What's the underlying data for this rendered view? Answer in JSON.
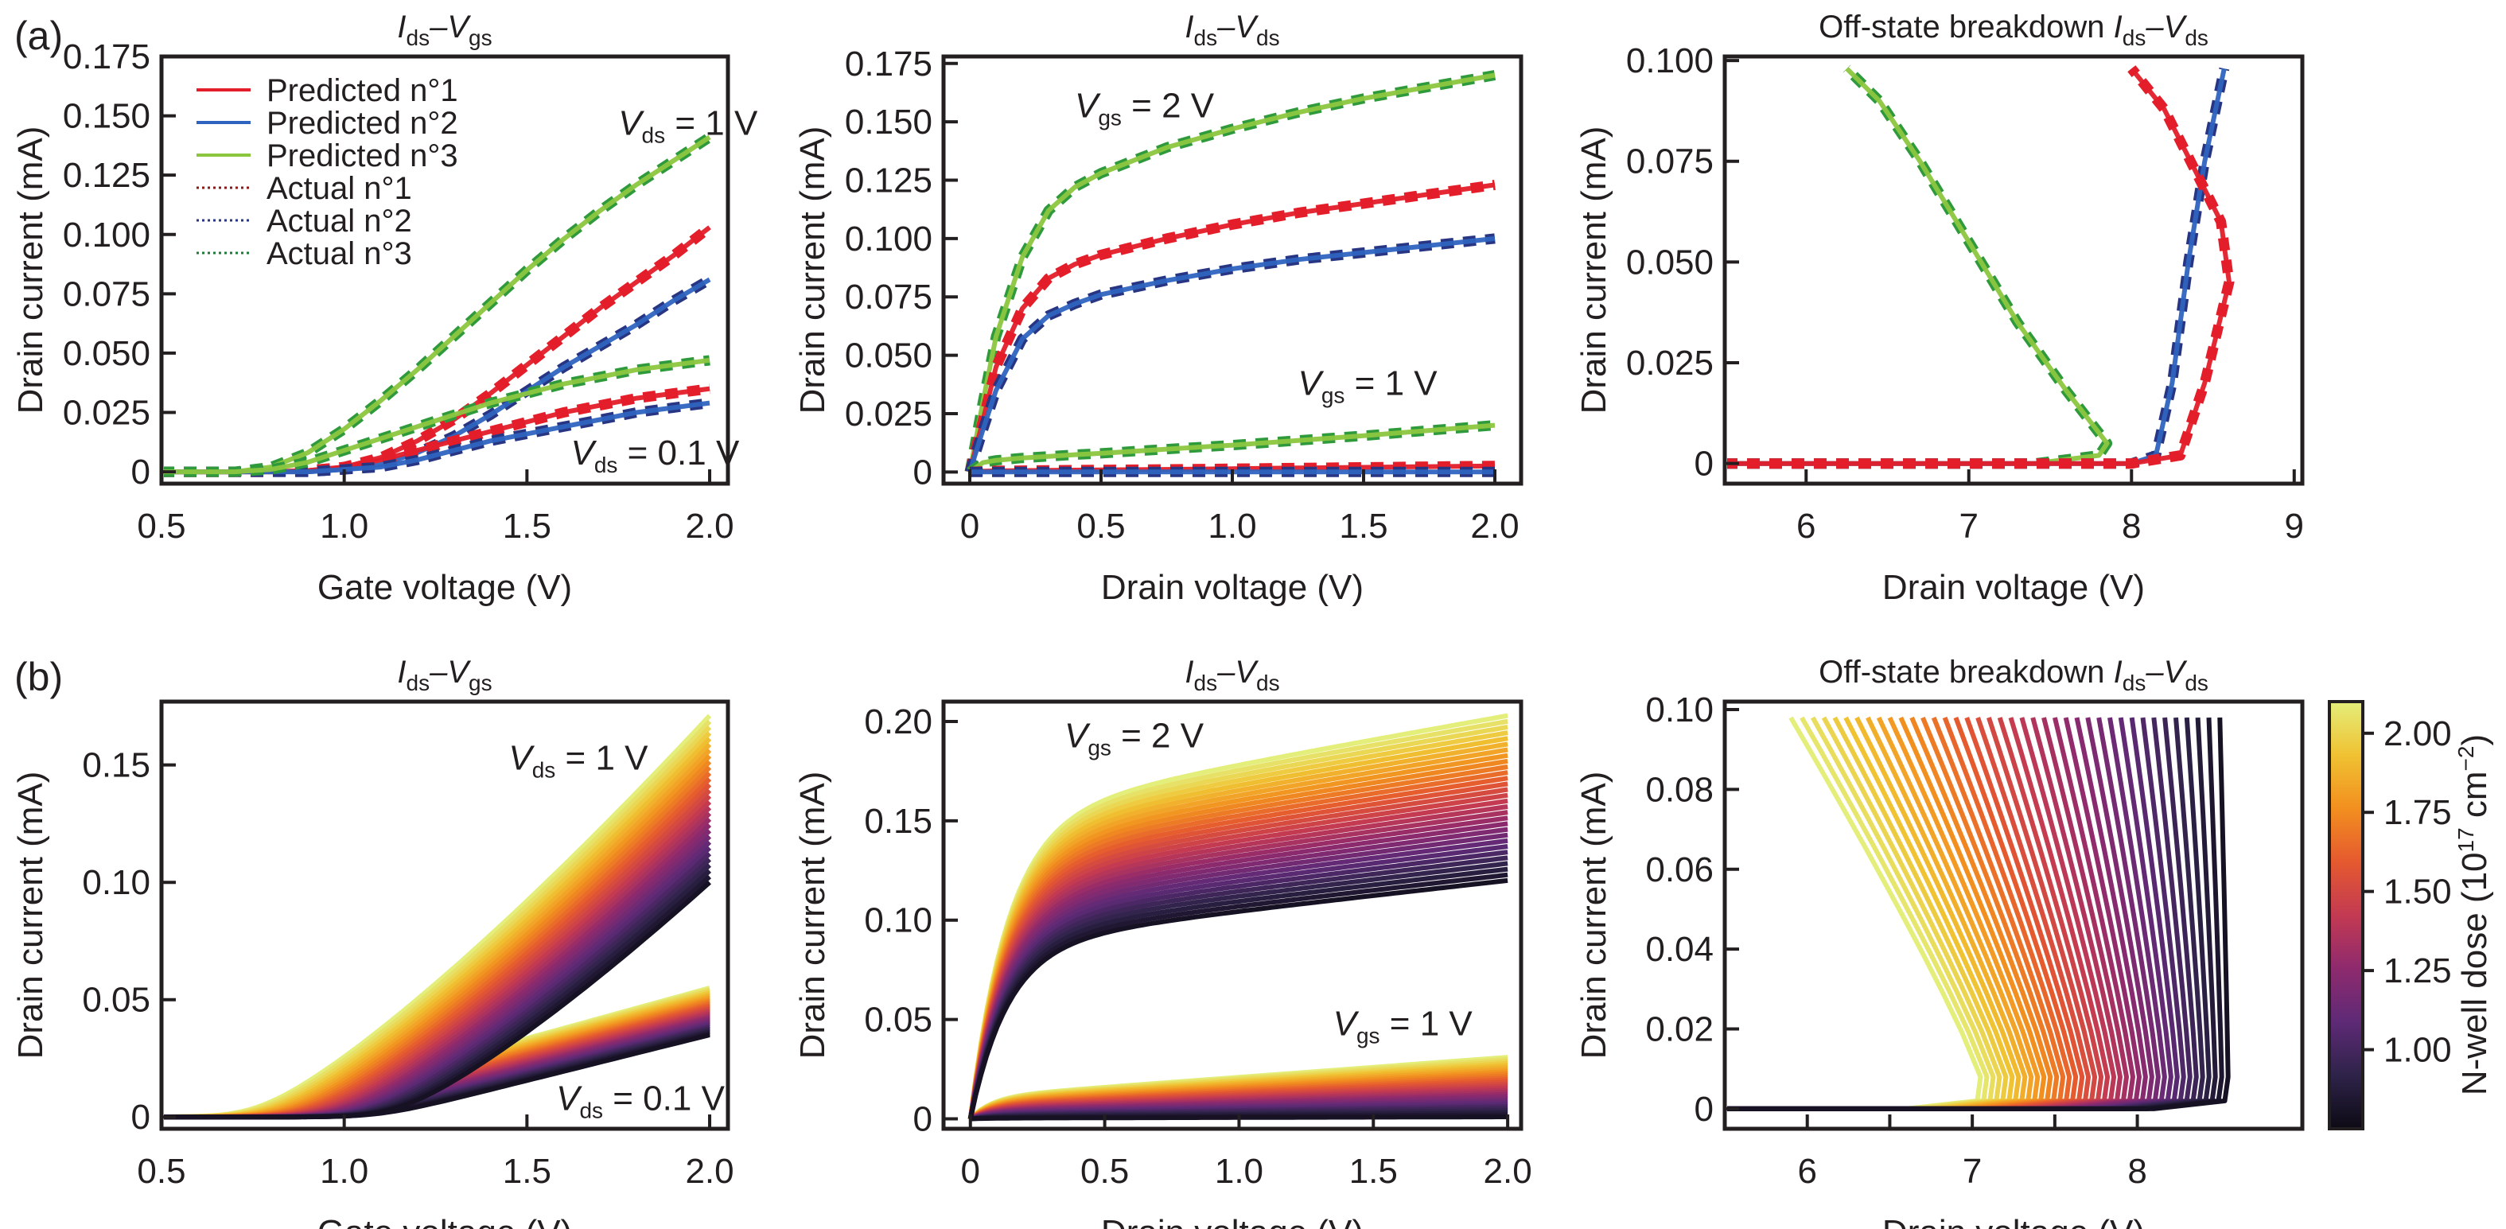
{
  "figure": {
    "panel_labels": [
      "(a)",
      "(b)"
    ],
    "legend": {
      "items": [
        {
          "label": "Predicted n°1",
          "style": "solid",
          "color": "#e31e2a"
        },
        {
          "label": "Predicted n°2",
          "style": "solid",
          "color": "#2e64bf"
        },
        {
          "label": "Predicted n°3",
          "style": "solid",
          "color": "#8cc63f"
        },
        {
          "label": "Actual n°1",
          "style": "dotted",
          "color": "#8b1a1a"
        },
        {
          "label": "Actual n°2",
          "style": "dotted",
          "color": "#283583"
        },
        {
          "label": "Actual n°3",
          "style": "dotted",
          "color": "#1f7a3a"
        }
      ]
    },
    "colorbar": {
      "label": "N-well dose (10",
      "label_exp": "17",
      "label_unit": " cm",
      "label_unit_exp": "−2",
      "label_close": ")",
      "ticks": [
        "1.00",
        "1.25",
        "1.50",
        "1.75",
        "2.00"
      ],
      "tick_values": [
        1.0,
        1.25,
        1.5,
        1.75,
        2.0
      ],
      "range": [
        0.75,
        2.1
      ],
      "colormap": "plasma-like (black–purple–magenta–orange–yellow)",
      "stops": [
        "#0d0a14",
        "#2e2349",
        "#5e2a76",
        "#8e2a6e",
        "#c33a52",
        "#e5592f",
        "#f28f1f",
        "#f0c232",
        "#e4ee7a"
      ]
    }
  },
  "chart_data": [
    {
      "id": "a1",
      "type": "line",
      "row": "(a)",
      "title": {
        "main": "I",
        "sub1": "ds",
        "mid": "–V",
        "sub2": "gs"
      },
      "xlabel": "Gate voltage (V)",
      "ylabel": "Drain current (mA)",
      "xlim": [
        0.5,
        2.05
      ],
      "ylim": [
        -0.005,
        0.175
      ],
      "xticks": [
        0.5,
        1.0,
        1.5,
        2.0
      ],
      "xtick_labels": [
        "0.5",
        "1.0",
        "1.5",
        "2.0"
      ],
      "yticks": [
        0,
        0.025,
        0.05,
        0.075,
        0.1,
        0.125,
        0.15,
        0.175
      ],
      "ytick_labels": [
        "0",
        "0.025",
        "0.050",
        "0.075",
        "0.100",
        "0.125",
        "0.150",
        "0.175"
      ],
      "annotations": [
        {
          "text_main": "V",
          "text_sub": "ds",
          "text_rest": " = 1 V",
          "at": [
            1.75,
            0.142
          ]
        },
        {
          "text_main": "V",
          "text_sub": "ds",
          "text_rest": " = 0.1 V",
          "at": [
            1.62,
            0.003
          ]
        }
      ],
      "x": [
        0.5,
        0.6,
        0.7,
        0.8,
        0.9,
        1.0,
        1.1,
        1.2,
        1.3,
        1.4,
        1.5,
        1.6,
        1.7,
        1.8,
        1.9,
        2.0
      ],
      "series": [
        {
          "name": "n°1 Vds=1V",
          "device": 1,
          "values": [
            0,
            0,
            0,
            0,
            0.0005,
            0.002,
            0.006,
            0.013,
            0.022,
            0.033,
            0.045,
            0.057,
            0.069,
            0.08,
            0.091,
            0.103
          ]
        },
        {
          "name": "n°2 Vds=1V",
          "device": 2,
          "values": [
            0,
            0,
            0,
            0,
            0,
            0.001,
            0.003,
            0.008,
            0.015,
            0.024,
            0.034,
            0.044,
            0.053,
            0.062,
            0.072,
            0.081
          ]
        },
        {
          "name": "n°3 Vds=1V",
          "device": 3,
          "values": [
            0,
            0,
            0,
            0.002,
            0.008,
            0.018,
            0.03,
            0.043,
            0.057,
            0.071,
            0.085,
            0.098,
            0.11,
            0.121,
            0.131,
            0.141
          ]
        },
        {
          "name": "n°1 Vds=0.1V",
          "device": 1,
          "values": [
            0,
            0,
            0,
            0,
            0.0005,
            0.002,
            0.005,
            0.009,
            0.013,
            0.017,
            0.021,
            0.025,
            0.028,
            0.031,
            0.033,
            0.035
          ]
        },
        {
          "name": "n°2 Vds=0.1V",
          "device": 2,
          "values": [
            0,
            0,
            0,
            0,
            0,
            0.001,
            0.002,
            0.005,
            0.009,
            0.013,
            0.016,
            0.019,
            0.022,
            0.025,
            0.027,
            0.029
          ]
        },
        {
          "name": "n°3 Vds=0.1V",
          "device": 3,
          "values": [
            0,
            0,
            0,
            0.001,
            0.004,
            0.009,
            0.014,
            0.019,
            0.024,
            0.029,
            0.033,
            0.037,
            0.04,
            0.043,
            0.045,
            0.047
          ]
        }
      ]
    },
    {
      "id": "a2",
      "type": "line",
      "row": "(a)",
      "title": {
        "main": "I",
        "sub1": "ds",
        "mid": "–V",
        "sub2": "ds"
      },
      "xlabel": "Drain voltage (V)",
      "ylabel": "Drain current (mA)",
      "xlim": [
        -0.1,
        2.1
      ],
      "ylim": [
        -0.005,
        0.178
      ],
      "xticks": [
        0,
        0.5,
        1.0,
        1.5,
        2.0
      ],
      "xtick_labels": [
        "0",
        "0.5",
        "1.0",
        "1.5",
        "2.0"
      ],
      "yticks": [
        0,
        0.025,
        0.05,
        0.075,
        0.1,
        0.125,
        0.15,
        0.175
      ],
      "ytick_labels": [
        "0",
        "0.025",
        "0.050",
        "0.075",
        "0.100",
        "0.125",
        "0.150",
        "0.175"
      ],
      "annotations": [
        {
          "text_main": "V",
          "text_sub": "gs",
          "text_rest": " = 2 V",
          "at": [
            0.4,
            0.152
          ]
        },
        {
          "text_main": "V",
          "text_sub": "gs",
          "text_rest": " = 1 V",
          "at": [
            1.25,
            0.033
          ]
        }
      ],
      "x": [
        0,
        0.05,
        0.1,
        0.2,
        0.3,
        0.4,
        0.5,
        0.75,
        1.0,
        1.25,
        1.5,
        1.75,
        2.0
      ],
      "series": [
        {
          "name": "n°3 Vgs=2V",
          "device": 3,
          "values": [
            0,
            0.03,
            0.058,
            0.092,
            0.112,
            0.122,
            0.128,
            0.139,
            0.147,
            0.154,
            0.16,
            0.165,
            0.17
          ]
        },
        {
          "name": "n°1 Vgs=2V",
          "device": 1,
          "values": [
            0,
            0.022,
            0.045,
            0.07,
            0.083,
            0.089,
            0.093,
            0.1,
            0.106,
            0.111,
            0.115,
            0.119,
            0.123
          ]
        },
        {
          "name": "n°2 Vgs=2V",
          "device": 2,
          "values": [
            0,
            0.018,
            0.035,
            0.057,
            0.067,
            0.072,
            0.076,
            0.082,
            0.087,
            0.091,
            0.094,
            0.097,
            0.1
          ]
        },
        {
          "name": "n°3 Vgs=1V",
          "device": 3,
          "values": [
            0,
            0.004,
            0.005,
            0.006,
            0.0067,
            0.0074,
            0.008,
            0.0098,
            0.0115,
            0.0135,
            0.0155,
            0.0178,
            0.02
          ]
        },
        {
          "name": "n°1 Vgs=1V",
          "device": 1,
          "values": [
            0,
            0.0003,
            0.0005,
            0.0006,
            0.0007,
            0.0008,
            0.0009,
            0.0011,
            0.0014,
            0.0017,
            0.002,
            0.0023,
            0.0026
          ]
        },
        {
          "name": "n°2 Vgs=1V",
          "device": 2,
          "values": [
            0,
            0,
            0,
            0,
            0,
            0,
            0,
            0,
            0,
            0,
            0,
            0,
            0
          ]
        }
      ]
    },
    {
      "id": "a3",
      "type": "line",
      "row": "(a)",
      "title": {
        "prefix": "Off-state breakdown ",
        "main": "I",
        "sub1": "ds",
        "mid": "–V",
        "sub2": "ds"
      },
      "xlabel": "Drain voltage (V)",
      "ylabel": "Drain current (mA)",
      "xlim": [
        5.5,
        9.05
      ],
      "ylim": [
        -0.005,
        0.101
      ],
      "xticks": [
        6,
        7,
        8,
        9
      ],
      "xtick_labels": [
        "6",
        "7",
        "8",
        "9"
      ],
      "yticks": [
        0,
        0.025,
        0.05,
        0.075,
        0.1
      ],
      "ytick_labels": [
        "0",
        "0.025",
        "0.050",
        "0.075",
        "0.100"
      ],
      "annotations": [],
      "series": [
        {
          "name": "n°3 breakdown",
          "device": 3,
          "points": [
            [
              5.5,
              0
            ],
            [
              7.4,
              0
            ],
            [
              7.8,
              0.002
            ],
            [
              7.85,
              0.005
            ],
            [
              7.6,
              0.018
            ],
            [
              7.3,
              0.035
            ],
            [
              7.0,
              0.055
            ],
            [
              6.7,
              0.075
            ],
            [
              6.45,
              0.09
            ],
            [
              6.25,
              0.098
            ]
          ]
        },
        {
          "name": "n°2 breakdown",
          "device": 2,
          "points": [
            [
              5.5,
              0
            ],
            [
              8.0,
              0
            ],
            [
              8.15,
              0.002
            ],
            [
              8.25,
              0.02
            ],
            [
              8.35,
              0.05
            ],
            [
              8.45,
              0.075
            ],
            [
              8.57,
              0.098
            ]
          ]
        },
        {
          "name": "n°1 breakdown",
          "device": 1,
          "points": [
            [
              5.5,
              0
            ],
            [
              8.0,
              0
            ],
            [
              8.3,
              0.002
            ],
            [
              8.45,
              0.02
            ],
            [
              8.6,
              0.045
            ],
            [
              8.55,
              0.06
            ],
            [
              8.4,
              0.072
            ],
            [
              8.2,
              0.088
            ],
            [
              8.0,
              0.098
            ]
          ]
        }
      ]
    },
    {
      "id": "b1",
      "type": "line",
      "row": "(b)",
      "title": {
        "main": "I",
        "sub1": "ds",
        "mid": "–V",
        "sub2": "gs"
      },
      "xlabel": "Gate voltage (V)",
      "ylabel": "Drain current (mA)",
      "xlim": [
        0.5,
        2.05
      ],
      "ylim": [
        -0.005,
        0.177
      ],
      "xticks": [
        0.5,
        1.0,
        1.5,
        2.0
      ],
      "xtick_labels": [
        "0.5",
        "1.0",
        "1.5",
        "2.0"
      ],
      "yticks": [
        0,
        0.05,
        0.1,
        0.15
      ],
      "ytick_labels": [
        "0",
        "0.05",
        "0.10",
        "0.15"
      ],
      "annotations": [
        {
          "text_main": "V",
          "text_sub": "ds",
          "text_rest": " = 1 V",
          "at": [
            1.45,
            0.148
          ]
        },
        {
          "text_main": "V",
          "text_sub": "ds",
          "text_rest": " = 0.1 V",
          "at": [
            1.58,
            0.003
          ]
        }
      ],
      "family": {
        "n_curves": 30,
        "dose_range": [
          0.8,
          2.1
        ],
        "vds1_end_range": [
          0.1,
          0.171
        ],
        "vds01_end_range": [
          0.035,
          0.055
        ],
        "vth_range": [
          1.1,
          0.72
        ]
      }
    },
    {
      "id": "b2",
      "type": "line",
      "row": "(b)",
      "title": {
        "main": "I",
        "sub1": "ds",
        "mid": "–V",
        "sub2": "ds"
      },
      "xlabel": "Drain voltage (V)",
      "ylabel": "Drain current (mA)",
      "xlim": [
        -0.1,
        2.05
      ],
      "ylim": [
        -0.005,
        0.21
      ],
      "xticks": [
        0,
        0.5,
        1.0,
        1.5,
        2.0
      ],
      "xtick_labels": [
        "0",
        "0.5",
        "1.0",
        "1.5",
        "2.0"
      ],
      "yticks": [
        0,
        0.05,
        0.1,
        0.15,
        0.2
      ],
      "ytick_labels": [
        "0",
        "0.05",
        "0.10",
        "0.15",
        "0.20"
      ],
      "annotations": [
        {
          "text_main": "V",
          "text_sub": "gs",
          "text_rest": " = 2 V",
          "at": [
            0.35,
            0.187
          ]
        },
        {
          "text_main": "V",
          "text_sub": "gs",
          "text_rest": " = 1 V",
          "at": [
            1.35,
            0.042
          ]
        }
      ],
      "family": {
        "n_curves": 30,
        "dose_range": [
          0.8,
          2.1
        ],
        "vgs2_end_range": [
          0.12,
          0.203
        ],
        "vgs2_knee_range": [
          0.09,
          0.155
        ],
        "vgs1_end_range": [
          0.001,
          0.031
        ]
      }
    },
    {
      "id": "b3",
      "type": "line",
      "row": "(b)",
      "title": {
        "prefix": "Off-state breakdown ",
        "main": "I",
        "sub1": "ds",
        "mid": "–V",
        "sub2": "ds"
      },
      "xlabel": "Drain voltage (V)",
      "ylabel": "Drain current (mA)",
      "xlim": [
        5.5,
        9.0
      ],
      "ylim": [
        -0.005,
        0.102
      ],
      "xticks": [
        6,
        6.5,
        7,
        7.5,
        8
      ],
      "xtick_labels": [
        "6",
        "",
        "7",
        "",
        "8"
      ],
      "yticks": [
        0,
        0.02,
        0.04,
        0.06,
        0.08,
        0.1
      ],
      "ytick_labels": [
        "0",
        "0.02",
        "0.04",
        "0.06",
        "0.08",
        "0.10"
      ],
      "annotations": [],
      "family": {
        "n_curves": 40,
        "dose_range": [
          0.8,
          2.1
        ],
        "top_x_range": [
          8.5,
          5.9
        ],
        "knee_x_range": [
          8.55,
          7.05
        ],
        "current_top": 0.098
      }
    }
  ]
}
